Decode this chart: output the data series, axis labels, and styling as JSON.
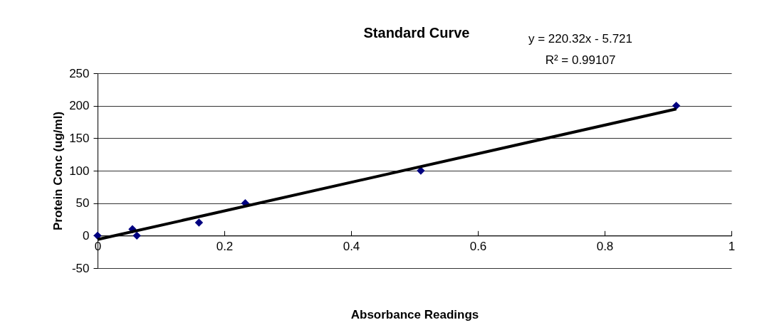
{
  "chart_data": {
    "type": "scatter",
    "title": "Standard Curve",
    "xlabel": "Absorbance Readings",
    "ylabel": "Protein Conc (ug/ml)",
    "series": [
      {
        "color": "#000080",
        "x": [
          0,
          0.055,
          0.062,
          0.16,
          0.233,
          0.51,
          0.913
        ],
        "values": [
          0,
          10,
          0,
          20,
          50,
          100,
          200
        ]
      },
      {
        "type": "line",
        "marker": "none",
        "color": "#000000",
        "x": [
          0,
          0.913
        ],
        "values": [
          -6,
          195
        ]
      }
    ],
    "xlim": [
      0,
      1
    ],
    "xticks": [
      0,
      0.2,
      0.4,
      0.6,
      0.8,
      1
    ],
    "ylim": [
      -50,
      250
    ],
    "yticks": [
      -50,
      0,
      50,
      100,
      150,
      200,
      250
    ],
    "grid": "y",
    "marker": "diamond",
    "annotations": [
      "y = 220.32x - 5.721",
      "R² = 0.99107"
    ]
  }
}
